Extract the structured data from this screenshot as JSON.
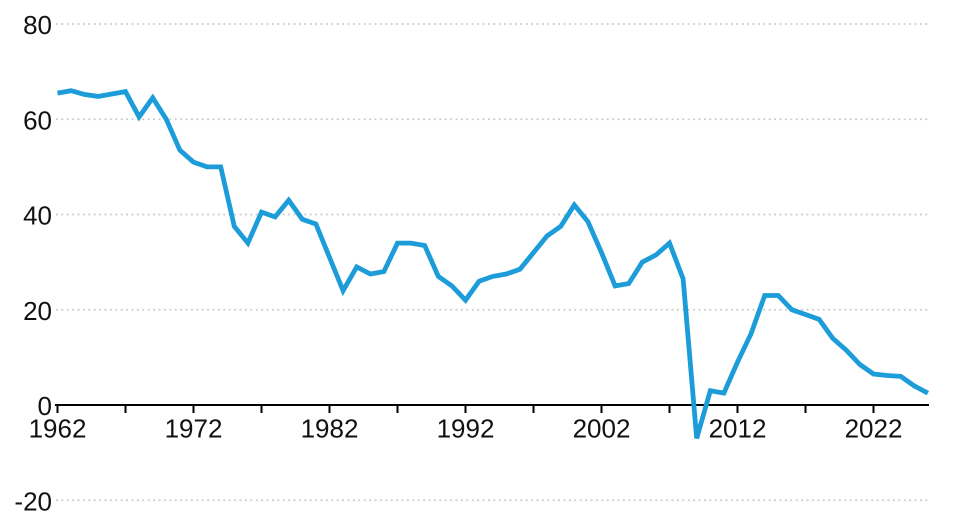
{
  "chart_data": {
    "type": "line",
    "x": [
      1962,
      1963,
      1964,
      1965,
      1966,
      1967,
      1968,
      1969,
      1970,
      1971,
      1972,
      1973,
      1974,
      1975,
      1976,
      1977,
      1978,
      1979,
      1980,
      1981,
      1982,
      1983,
      1984,
      1985,
      1986,
      1987,
      1988,
      1989,
      1990,
      1991,
      1992,
      1993,
      1994,
      1995,
      1996,
      1997,
      1998,
      1999,
      2000,
      2001,
      2002,
      2003,
      2004,
      2005,
      2006,
      2007,
      2008,
      2009,
      2010,
      2011,
      2012,
      2013,
      2014,
      2015,
      2016,
      2017,
      2018,
      2019,
      2020,
      2021,
      2022,
      2023,
      2024,
      2025,
      2026
    ],
    "values": [
      65.5,
      66,
      65.2,
      64.8,
      65.3,
      65.8,
      60.5,
      64.5,
      60,
      53.5,
      51,
      50,
      50,
      37.5,
      34,
      40.5,
      39.5,
      43,
      39,
      38,
      31,
      24,
      29,
      27.5,
      28,
      34,
      34,
      33.5,
      27,
      25,
      22,
      26,
      27,
      27.5,
      28.5,
      32,
      35.5,
      37.5,
      42,
      38.5,
      32,
      25,
      25.5,
      30,
      31.5,
      34,
      26.5,
      -7,
      3,
      2.5,
      9,
      15,
      23,
      23,
      20,
      19,
      18,
      14,
      11.5,
      8.5,
      6.5,
      6.2,
      6,
      4,
      2.5
    ],
    "xlim": [
      1962,
      2026
    ],
    "ylim": [
      -20,
      80
    ],
    "y_ticks": [
      80,
      60,
      40,
      20,
      0,
      -20
    ],
    "y_tick_labels": [
      "80",
      "60",
      "40",
      "20",
      "0",
      "-20"
    ],
    "x_ticks_minor": [
      1962,
      1967,
      1972,
      1977,
      1982,
      1987,
      1992,
      1997,
      2002,
      2007,
      2012,
      2017,
      2022
    ],
    "x_ticks_labeled": [
      1962,
      1972,
      1982,
      1992,
      2002,
      2012,
      2022
    ],
    "x_tick_labels": [
      "1962",
      "1972",
      "1982",
      "1992",
      "2002",
      "2012",
      "2022"
    ],
    "grid": "horizontal-dotted",
    "legend_position": "none",
    "line_color": "#1c9cd8",
    "grid_color": "#c9c9c9",
    "axis_color": "#000000",
    "label_color": "#111111"
  }
}
